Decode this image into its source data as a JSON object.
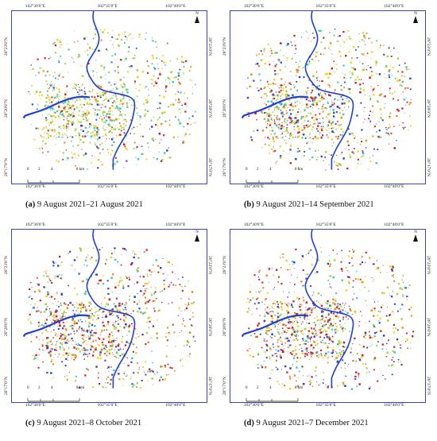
{
  "panels": [
    {
      "letter": "(a)",
      "caption": "9 August 2021–21 August 2021",
      "top_coords": [
        "102°30'0\"E",
        "102°35'0\"E",
        "102°40'0\"E"
      ],
      "bottom_coords": [
        "102°30'0\"E",
        "102°35'0\"E",
        "102°40'0\"E"
      ],
      "left_coords": [
        "26°23'0\"N",
        "26°20'0\"N",
        "26°17'0\"N"
      ],
      "right_coords": [
        "26°23'0\"N",
        "26°20'0\"N",
        "26°17'0\"N"
      ],
      "north_label": "N",
      "scale_labels": [
        "0",
        "2",
        "4",
        "8 km"
      ]
    },
    {
      "letter": "(b)",
      "caption": "9 August 2021–14 September 2021",
      "top_coords": [
        "102°30'0\"E",
        "102°35'0\"E",
        "102°40'0\"E"
      ],
      "bottom_coords": [
        "102°30'0\"E",
        "102°35'0\"E",
        "102°40'0\"E"
      ],
      "left_coords": [
        "26°23'0\"N",
        "26°20'0\"N",
        "26°17'0\"N"
      ],
      "right_coords": [
        "26°23'0\"N",
        "26°20'0\"N",
        "26°17'0\"N"
      ],
      "north_label": "N",
      "scale_labels": [
        "0",
        "2",
        "4",
        "8 km"
      ]
    },
    {
      "letter": "(c)",
      "caption": "9 August 2021–8 October 2021",
      "top_coords": [
        "102°30'0\"E",
        "102°35'0\"E",
        "102°40'0\"E"
      ],
      "bottom_coords": [
        "102°30'0\"E",
        "102°35'0\"E",
        "102°40'0\"E"
      ],
      "left_coords": [
        "26°23'0\"N",
        "26°20'0\"N",
        "26°17'0\"N"
      ],
      "right_coords": [
        "26°23'0\"N",
        "26°20'0\"N",
        "26°17'0\"N"
      ],
      "north_label": "N",
      "scale_labels": [
        "0",
        "2",
        "4",
        "8 km"
      ]
    },
    {
      "letter": "(d)",
      "caption": "9 August 2021–7 December 2021",
      "top_coords": [
        "102°30'0\"E",
        "102°35'0\"E",
        "102°40'0\"E"
      ],
      "bottom_coords": [
        "102°30'0\"E",
        "102°35'0\"E",
        "102°40'0\"E"
      ],
      "left_coords": [
        "26°23'0\"N",
        "26°20'0\"N",
        "26°17'0\"N"
      ],
      "right_coords": [
        "26°23'0\"N",
        "26°20'0\"N",
        "26°17'0\"N"
      ],
      "north_label": "N",
      "scale_labels": [
        "0",
        "2",
        "4",
        "8 km"
      ]
    }
  ],
  "colors": {
    "frame": "#3d44b0",
    "river": "#1f3fd6",
    "class_colors": [
      "#d41f1f",
      "#f08a1a",
      "#f2d21f",
      "#9fd83a",
      "#3cc8c8",
      "#2a46d8"
    ]
  }
}
